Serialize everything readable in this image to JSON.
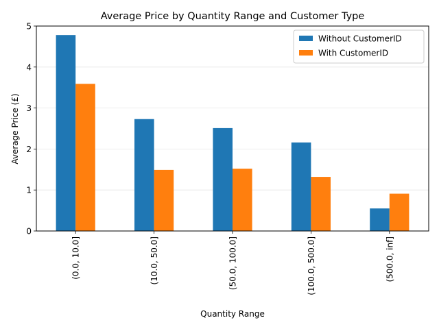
{
  "chart_data": {
    "type": "bar",
    "title": "Average Price by Quantity Range and Customer Type",
    "xlabel": "Quantity Range",
    "ylabel": "Average Price (£)",
    "categories": [
      "(0.0, 10.0]",
      "(10.0, 50.0]",
      "(50.0, 100.0]",
      "(100.0, 500.0]",
      "(500.0, inf]"
    ],
    "series": [
      {
        "name": "Without CustomerID",
        "color": "#1f77b4",
        "values": [
          4.78,
          2.73,
          2.51,
          2.16,
          0.55
        ]
      },
      {
        "name": "With CustomerID",
        "color": "#ff7f0e",
        "values": [
          3.59,
          1.49,
          1.52,
          1.32,
          0.91
        ]
      }
    ],
    "ylim": [
      0,
      5
    ],
    "yticks": [
      0,
      1,
      2,
      3,
      4,
      5
    ],
    "grid": "y",
    "legend": "top-right"
  }
}
